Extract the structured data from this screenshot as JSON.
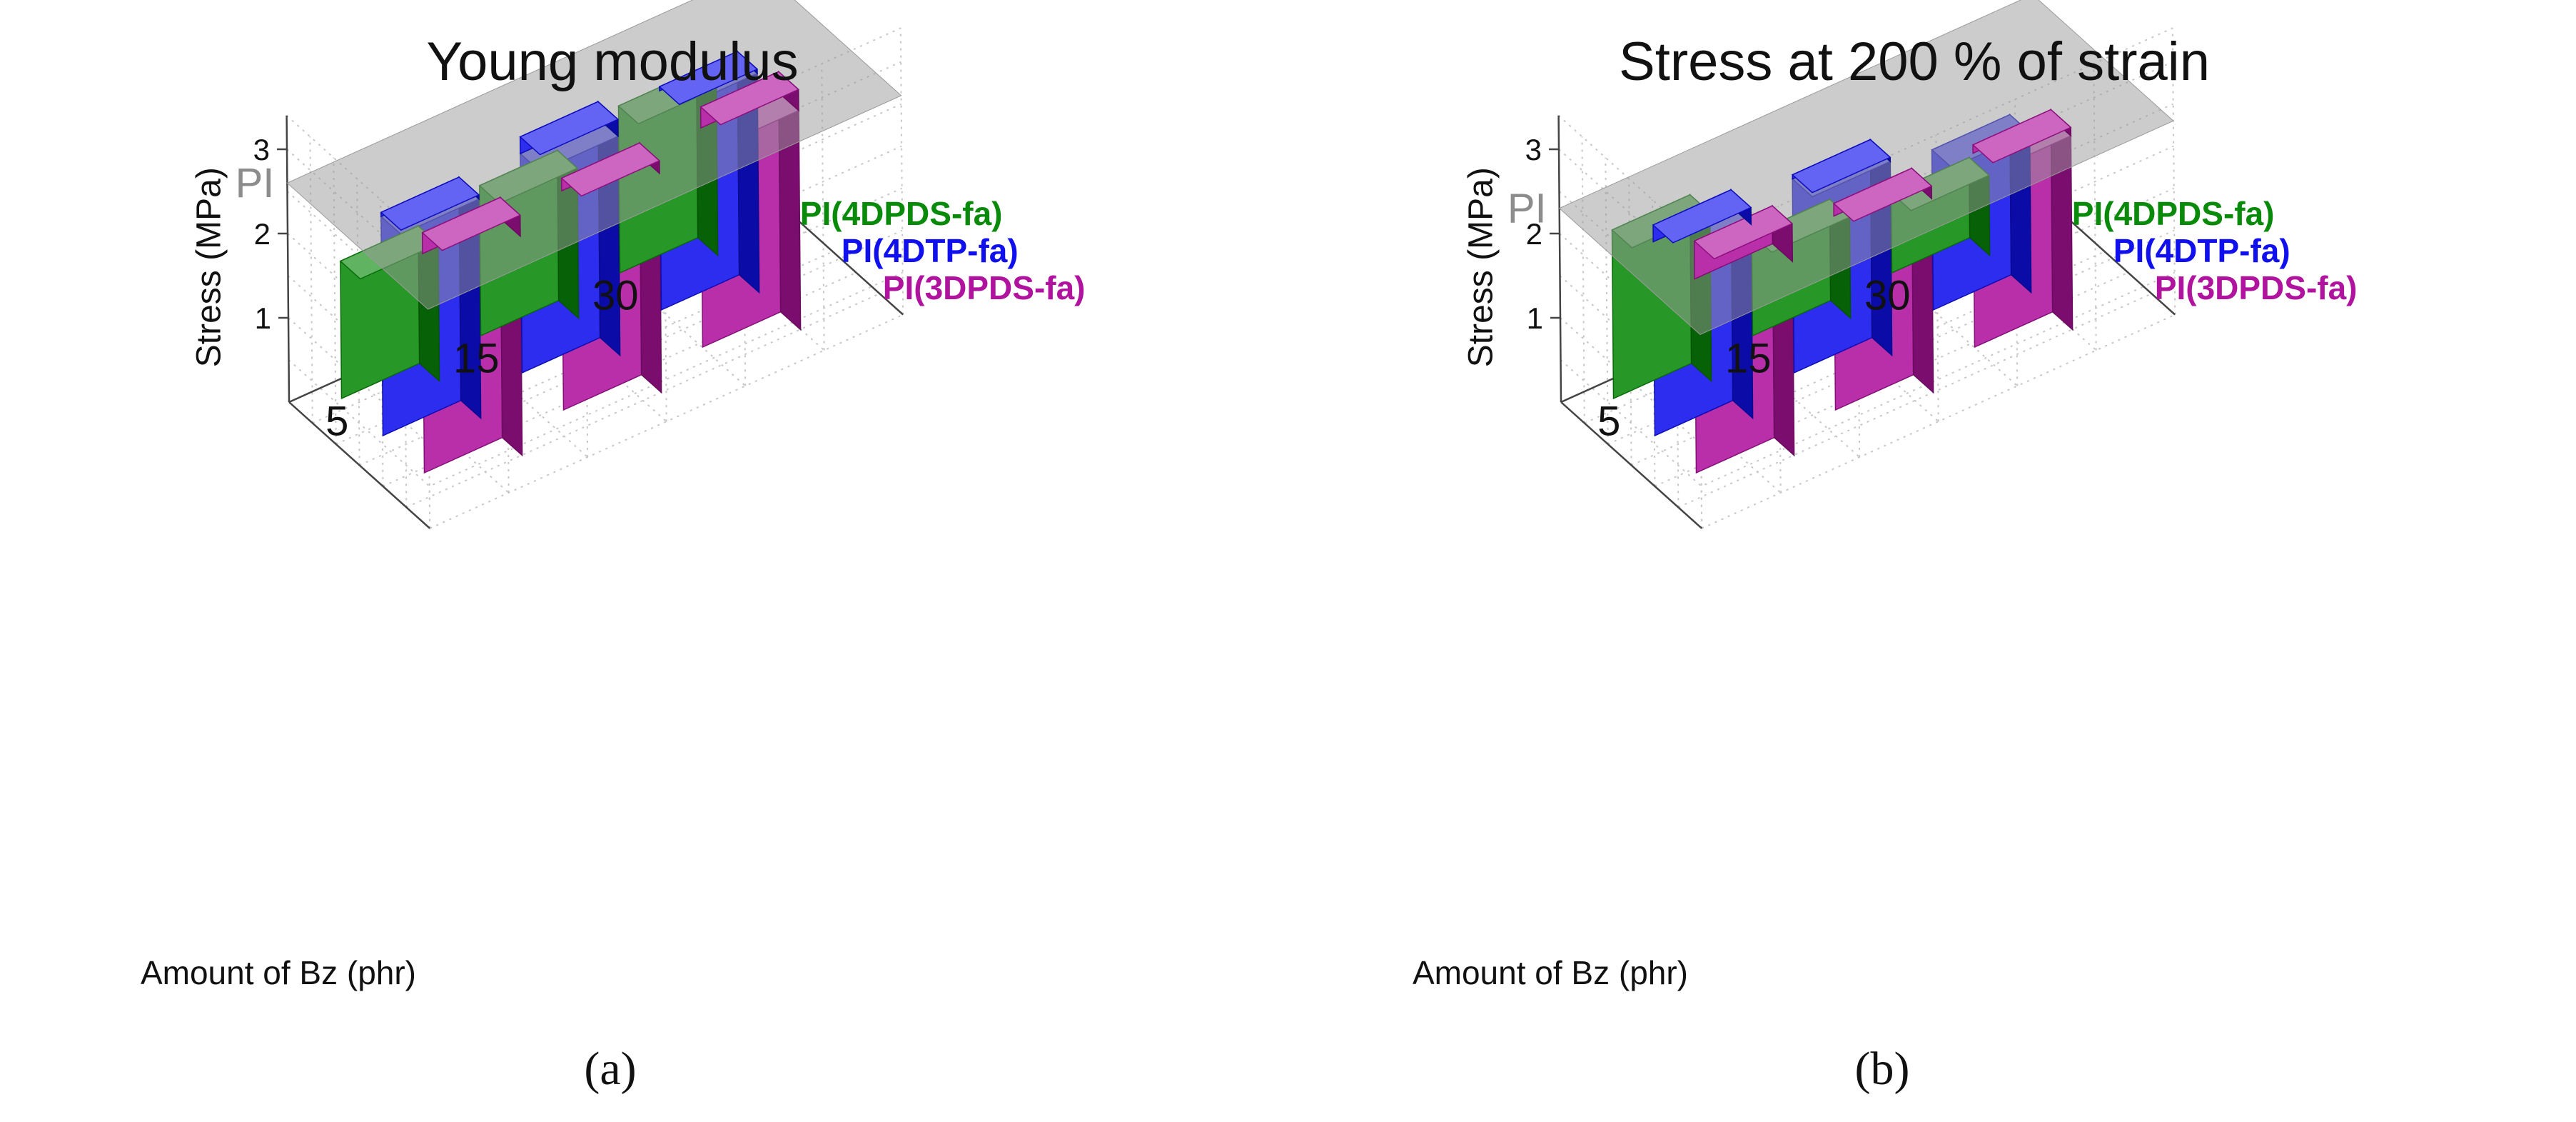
{
  "colors": {
    "PI(4DPDS-fa)": "#0a8a0a",
    "PI(4DTP-fa)": "#1010ee",
    "PI(3DPDS-fa)": "#b0139e"
  },
  "chart_data": [
    {
      "type": "bar3d",
      "panel": "a",
      "caption": "(a)",
      "title": "Young modulus",
      "ylabel": "Stress (MPa)",
      "xlabel": "Amount of Bz (phr)",
      "categories": [
        "5",
        "15",
        "30"
      ],
      "yticks": [
        "1",
        "2",
        "3"
      ],
      "ylim": [
        0,
        3.4
      ],
      "reference": {
        "label": "PI",
        "value": 2.6
      },
      "series": [
        {
          "name": "PI(4DPDS-fa)",
          "values": [
            1.63,
            1.78,
            1.98
          ]
        },
        {
          "name": "PI(4DTP-fa)",
          "values": [
            2.65,
            2.8,
            2.65
          ]
        },
        {
          "name": "PI(3DPDS-fa)",
          "values": [
            2.85,
            2.75,
            2.85
          ]
        }
      ]
    },
    {
      "type": "bar3d",
      "panel": "b",
      "caption": "(b)",
      "title": "Stress at 200 % of strain",
      "ylabel": "Stress (MPa)",
      "xlabel": "Amount of Bz (phr)",
      "categories": [
        "5",
        "15",
        "30"
      ],
      "yticks": [
        "1",
        "2",
        "3"
      ],
      "ylim": [
        0,
        3.4
      ],
      "reference": {
        "label": "PI",
        "value": 2.3
      },
      "series": [
        {
          "name": "PI(4DPDS-fa)",
          "values": [
            2.0,
            1.2,
            0.95
          ]
        },
        {
          "name": "PI(4DTP-fa)",
          "values": [
            2.5,
            2.35,
            1.9
          ]
        },
        {
          "name": "PI(3DPDS-fa)",
          "values": [
            2.75,
            2.45,
            2.4
          ]
        }
      ]
    }
  ]
}
